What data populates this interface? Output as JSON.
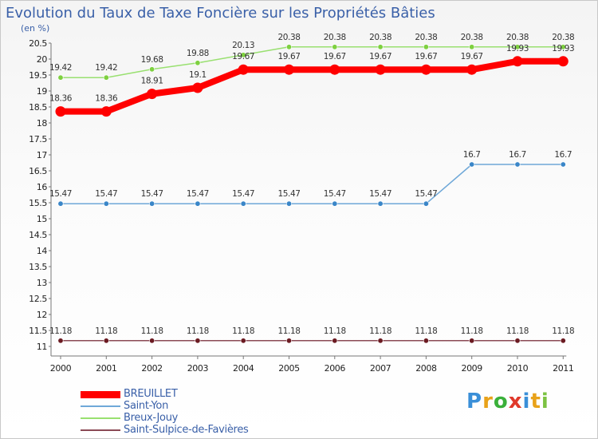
{
  "header": {
    "title": "Evolution du Taux de Taxe Foncière sur les Propriétés Bâties",
    "unit": "(en %)"
  },
  "logo": {
    "letters": [
      "P",
      "r",
      "o",
      "x",
      "i",
      "t",
      "i"
    ],
    "colors": [
      "#3a8fd8",
      "#e8a21a",
      "#3ab03a",
      "#e0392b",
      "#3a8fd8",
      "#e8a21a",
      "#7cc242"
    ]
  },
  "chart_data": {
    "type": "line",
    "title": "Evolution du Taux de Taxe Foncière sur les Propriétés Bâties",
    "ylabel": "(en %)",
    "xlabel": "",
    "x": [
      "2000",
      "2001",
      "2002",
      "2003",
      "2004",
      "2005",
      "2006",
      "2007",
      "2008",
      "2009",
      "2010",
      "2011"
    ],
    "ylim": [
      11,
      20.5
    ],
    "yticks": [
      "11",
      "11.5",
      "12",
      "12.5",
      "13",
      "13.5",
      "14",
      "14.5",
      "15",
      "15.5",
      "16",
      "16.5",
      "17",
      "17.5",
      "18",
      "18.5",
      "19",
      "19.5",
      "20",
      "20.5"
    ],
    "grid": false,
    "legend_position": "bottom-left",
    "series": [
      {
        "name": "BREUILLET",
        "color": "#ff0000",
        "values": [
          18.36,
          18.36,
          18.91,
          19.1,
          19.67,
          19.67,
          19.67,
          19.67,
          19.67,
          19.67,
          19.93,
          19.93
        ],
        "labels": [
          "18.36",
          "18.36",
          "18.91",
          "19.1",
          "19.67",
          "19.67",
          "19.67",
          "19.67",
          "19.67",
          "19.67",
          "19.93",
          "19.93"
        ]
      },
      {
        "name": "Saint-Yon",
        "color": "#6fa8d8",
        "values": [
          15.47,
          15.47,
          15.47,
          15.47,
          15.47,
          15.47,
          15.47,
          15.47,
          15.47,
          16.7,
          16.7,
          16.7
        ],
        "labels": [
          "15.47",
          "15.47",
          "15.47",
          "15.47",
          "15.47",
          "15.47",
          "15.47",
          "15.47",
          "15.47",
          "16.7",
          "16.7",
          "16.7"
        ]
      },
      {
        "name": "Breux-Jouy",
        "color": "#99e070",
        "values": [
          19.42,
          19.42,
          19.68,
          19.88,
          20.13,
          20.38,
          20.38,
          20.38,
          20.38,
          20.38,
          20.38,
          20.38
        ],
        "labels": [
          "19.42",
          "19.42",
          "19.68",
          "19.88",
          "20.13",
          "20.38",
          "20.38",
          "20.38",
          "20.38",
          "20.38",
          "20.38",
          "20.38"
        ]
      },
      {
        "name": "Saint-Sulpice-de-Favières",
        "color": "#8b4a55",
        "values": [
          11.18,
          11.18,
          11.18,
          11.18,
          11.18,
          11.18,
          11.18,
          11.18,
          11.18,
          11.18,
          11.18,
          11.18
        ],
        "labels": [
          "11.18",
          "11.18",
          "11.18",
          "11.18",
          "11.18",
          "11.18",
          "11.18",
          "11.18",
          "11.18",
          "11.18",
          "11.18",
          "11.18"
        ]
      }
    ]
  }
}
